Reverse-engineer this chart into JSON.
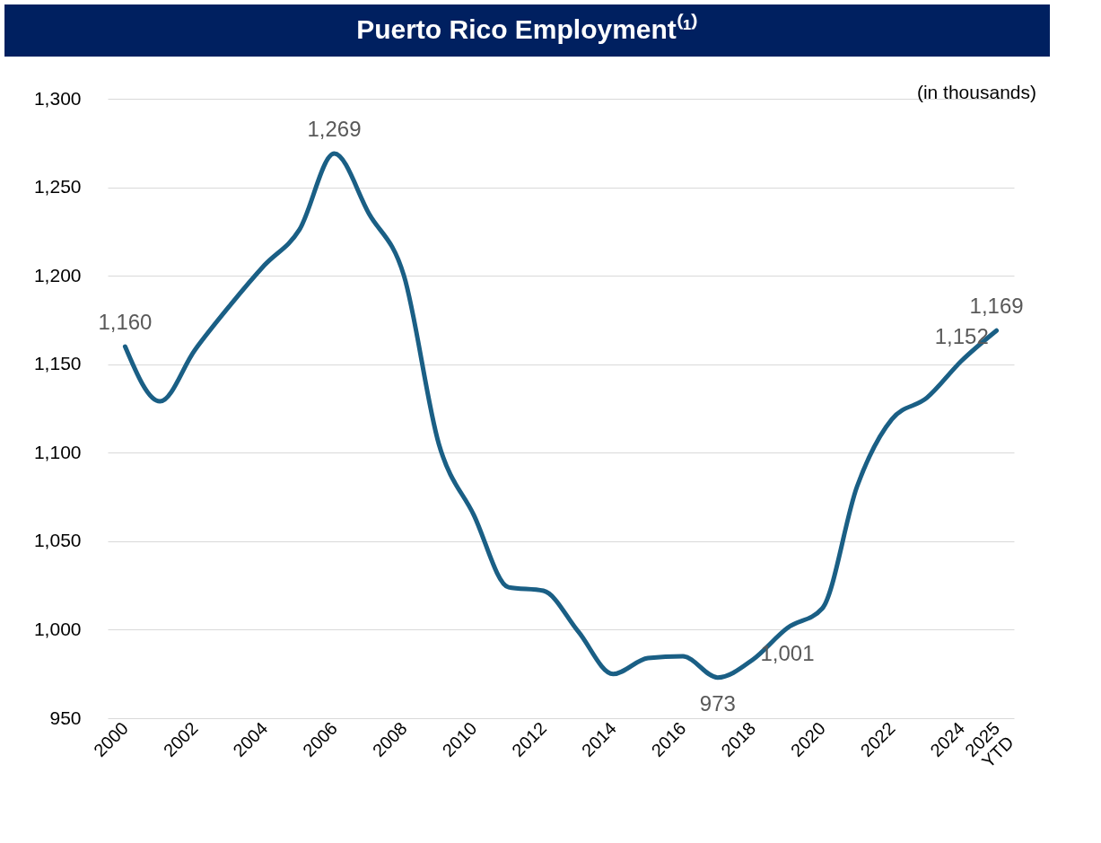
{
  "chart_data": {
    "type": "line",
    "title": "Puerto Rico Employment⁽¹⁾",
    "annotations": [
      "(in thousands)"
    ],
    "categories": [
      "2000",
      null,
      "2002",
      null,
      "2004",
      null,
      "2006",
      null,
      "2008",
      null,
      "2010",
      null,
      "2012",
      null,
      "2014",
      null,
      "2016",
      null,
      "2018",
      null,
      "2020",
      null,
      "2022",
      null,
      "2024",
      "2025 YTD"
    ],
    "series": [
      {
        "color": "#1a5f85",
        "values": [
          1160,
          1129,
          1158,
          1183,
          1206,
          1226,
          1269,
          1235,
          1200,
          1105,
          1065,
          1024,
          1022,
          999,
          975,
          984,
          985,
          973,
          983,
          1001,
          1012,
          1081,
          1119,
          1131,
          1152,
          1169
        ],
        "value_labels": [
          "1,160",
          null,
          null,
          null,
          null,
          null,
          "1,269",
          null,
          null,
          null,
          null,
          null,
          null,
          null,
          null,
          null,
          null,
          "973",
          null,
          "1,001",
          null,
          null,
          null,
          null,
          "1,152",
          "1,169"
        ]
      }
    ],
    "ylim": [
      950,
      1300
    ],
    "yticks": [
      950,
      {
        "value": 1000,
        "label": "1,000"
      },
      {
        "value": 1050,
        "label": "1,050"
      },
      {
        "value": 1100,
        "label": "1,100"
      },
      {
        "value": 1150,
        "label": "1,150"
      },
      {
        "value": 1200,
        "label": "1,200"
      },
      {
        "value": 1250,
        "label": "1,250"
      },
      {
        "value": 1300,
        "label": "1,300"
      }
    ],
    "grid": "y",
    "marker": "none",
    "line_style": "solid"
  }
}
